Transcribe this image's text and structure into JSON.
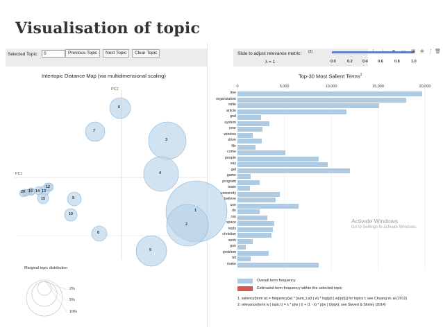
{
  "slide": {
    "title": "Visualisation of topic"
  },
  "controls": {
    "selected_topic_label": "Selected Topic:",
    "selected_topic_value": "0",
    "prev_button": "Previous Topic",
    "next_button": "Next Topic",
    "clear_button": "Clear Topic",
    "slider_label": "Slide to adjust relevance metric:",
    "slider_footnote": "(2)",
    "lambda_label": "λ = 1",
    "lambda_value": 1,
    "slider_ticks": [
      "0.0",
      "0.2",
      "0.4",
      "0.6",
      "0.8",
      "1.0"
    ]
  },
  "toolbar_icons": [
    "up-arrow-icon",
    "down-arrow-icon",
    "link-icon",
    "comment-icon",
    "image-icon",
    "settings-icon",
    "more-icon",
    "delete-icon"
  ],
  "intertopic_map": {
    "title": "Intertopic Distance Map (via multidimensional scaling)",
    "pc1_label": "PC1",
    "pc2_label": "PC2",
    "topics": [
      {
        "label": "1"
      },
      {
        "label": "2"
      },
      {
        "label": "3"
      },
      {
        "label": "4"
      },
      {
        "label": "5"
      },
      {
        "label": "6"
      },
      {
        "label": "7"
      },
      {
        "label": "8"
      },
      {
        "label": "9"
      },
      {
        "label": "10"
      },
      {
        "label": "11"
      },
      {
        "label": "12"
      },
      {
        "label": "13"
      },
      {
        "label": "14"
      },
      {
        "label": "15"
      },
      {
        "label": "16"
      },
      {
        "label": "17"
      },
      {
        "label": "18"
      },
      {
        "label": "19"
      },
      {
        "label": "20"
      }
    ],
    "cluster_text": {
      "t20": "20",
      "t18": "18",
      "t16": "16",
      "t14": "14",
      "t13": "13",
      "t12": "12",
      "t11": "11",
      "t15": "15",
      "t17": "17",
      "t19": "19"
    },
    "marginal": {
      "title": "Marginal topic distribution",
      "levels": [
        "2%",
        "5%",
        "10%"
      ]
    }
  },
  "chart_data": {
    "type": "bar",
    "title": "Top-30 Most Salient Terms",
    "title_superscript": "1",
    "orientation": "horizontal",
    "xlim": [
      0,
      20000
    ],
    "xticks": [
      "0",
      "5,000",
      "10,000",
      "15,000",
      "20,000"
    ],
    "xtick_values": [
      0,
      5000,
      10000,
      15000,
      20000
    ],
    "categories": [
      "line",
      "organization",
      "write",
      "article",
      "god",
      "system",
      "year",
      "window",
      "drive",
      "file",
      "come",
      "people",
      "say",
      "get",
      "game",
      "program",
      "team",
      "university",
      "believe",
      "use",
      "do",
      "run",
      "space",
      "reply",
      "christian",
      "work",
      "gun",
      "problem",
      "bit",
      "make"
    ],
    "series": [
      {
        "name": "Overall term frequency",
        "color": "#aecbe3",
        "values": [
          19700,
          18000,
          15100,
          11600,
          2500,
          3400,
          2700,
          1600,
          2600,
          1900,
          5100,
          8700,
          9600,
          12000,
          1400,
          2400,
          1300,
          4500,
          4100,
          6500,
          2400,
          3200,
          3900,
          3800,
          3600,
          1600,
          900,
          3300,
          1400,
          8700
        ]
      }
    ],
    "legend": [
      {
        "label": "Overall term frequency",
        "color": "#aecbe3"
      },
      {
        "label": "Estimated term frequency within the selected topic",
        "color": "#d9534f"
      }
    ],
    "footnotes": [
      "1. saliency(term w) = frequency(w) * [sum_t p(t | w) * log(p(t | w)/p(t))] for topics t; see Chuang et. al (2012)",
      "2. relevance(term w | topic t) = λ * p(w | t) + (1 - λ) * p(w | t)/p(w); see Sievert & Shirley (2014)"
    ]
  },
  "watermark": {
    "line1": "Activate Windows",
    "line2": "Go to Settings to activate Windows."
  }
}
